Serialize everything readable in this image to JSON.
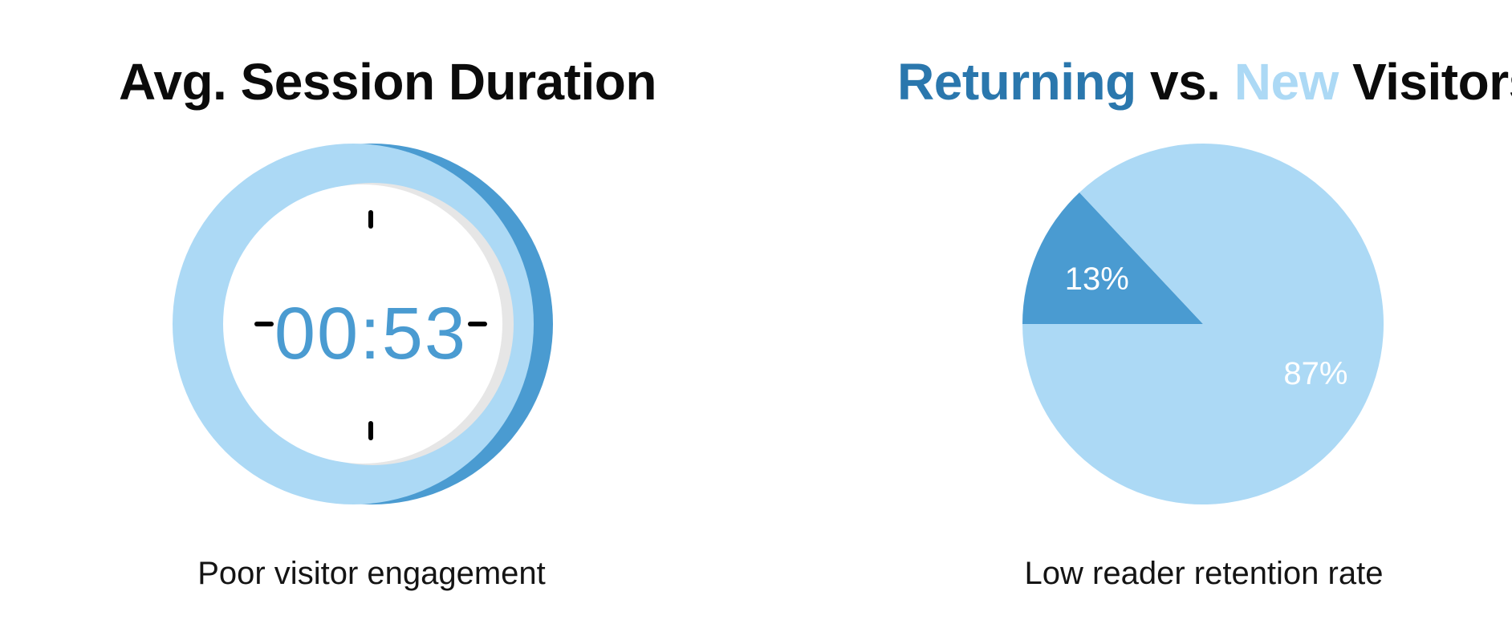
{
  "chart_data": [
    {
      "type": "gauge",
      "title": "Avg. Session Duration",
      "value_text": "00:53",
      "value_seconds": 53,
      "max_seconds": 60,
      "caption": "Poor visitor engagement",
      "colors": {
        "ring": "#acd9f5",
        "progress": "#4a9bd1",
        "shadow": "#e6e6e6",
        "face": "#ffffff",
        "ticks": "#000000",
        "value": "#4a9bd1"
      }
    },
    {
      "type": "pie",
      "title_parts": {
        "returning": "Returning",
        "vs": " vs. ",
        "new": "New",
        "visitors": " Visitors"
      },
      "slices": [
        {
          "label": "13%",
          "value": 13,
          "color": "#4a9bd1"
        },
        {
          "label": "87%",
          "value": 87,
          "color": "#acd9f5"
        }
      ],
      "caption": "Low reader retention rate",
      "colors": {
        "returning": "#2a77ad",
        "new": "#acd9f5",
        "label_text": "#ffffff"
      }
    }
  ]
}
